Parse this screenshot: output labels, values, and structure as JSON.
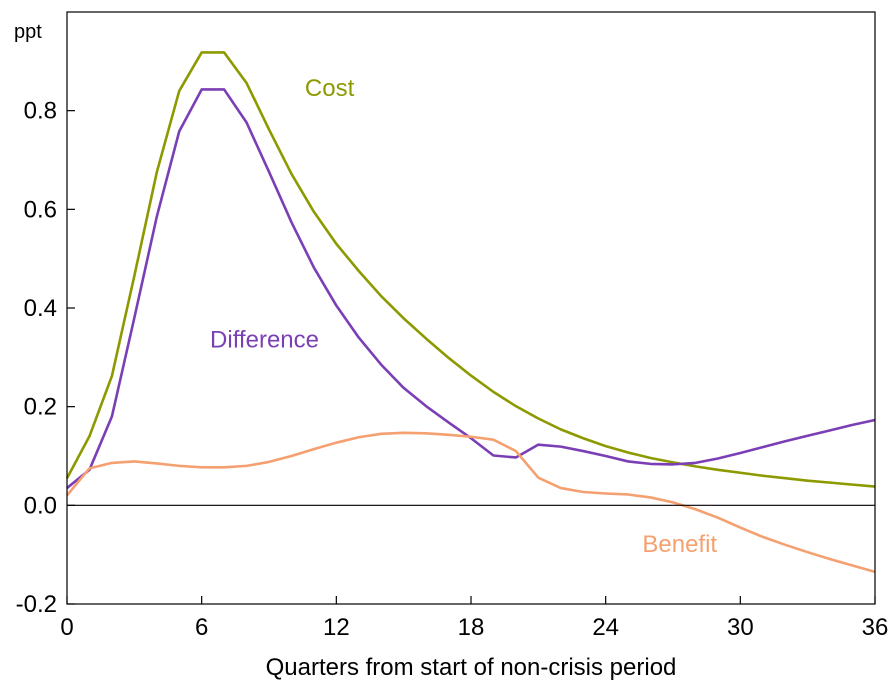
{
  "chart_data": {
    "type": "line",
    "title": "",
    "unit_label": "ppt",
    "xlabel": "Quarters from start of non-crisis period",
    "ylabel": "",
    "xlim": [
      0,
      36
    ],
    "ylim": [
      -0.2,
      1.0
    ],
    "x_ticks": [
      0,
      6,
      12,
      18,
      24,
      30,
      36
    ],
    "x_tick_labels": [
      "0",
      "6",
      "12",
      "18",
      "24",
      "30",
      "36"
    ],
    "y_ticks": [
      -0.2,
      0.0,
      0.2,
      0.4,
      0.6,
      0.8
    ],
    "y_tick_labels": [
      "-0.2",
      "0.0",
      "0.2",
      "0.4",
      "0.6",
      "0.8"
    ],
    "zero_line": true,
    "grid": false,
    "series": [
      {
        "name": "Cost",
        "color": "#8c9a00",
        "label_anchor": {
          "x": 11.7,
          "y": 0.83
        },
        "points": [
          [
            0,
            0.055
          ],
          [
            1,
            0.14
          ],
          [
            2,
            0.262
          ],
          [
            3,
            0.465
          ],
          [
            4,
            0.675
          ],
          [
            5,
            0.84
          ],
          [
            6,
            0.918
          ],
          [
            7,
            0.918
          ],
          [
            8,
            0.856
          ],
          [
            9,
            0.762
          ],
          [
            10,
            0.672
          ],
          [
            11,
            0.595
          ],
          [
            12,
            0.53
          ],
          [
            13,
            0.475
          ],
          [
            14,
            0.424
          ],
          [
            15,
            0.379
          ],
          [
            16,
            0.338
          ],
          [
            17,
            0.299
          ],
          [
            18,
            0.263
          ],
          [
            19,
            0.23
          ],
          [
            20,
            0.201
          ],
          [
            21,
            0.176
          ],
          [
            22,
            0.154
          ],
          [
            23,
            0.136
          ],
          [
            24,
            0.12
          ],
          [
            25,
            0.107
          ],
          [
            26,
            0.096
          ],
          [
            27,
            0.087
          ],
          [
            28,
            0.079
          ],
          [
            29,
            0.072
          ],
          [
            30,
            0.066
          ],
          [
            31,
            0.06
          ],
          [
            32,
            0.055
          ],
          [
            33,
            0.05
          ],
          [
            34,
            0.046
          ],
          [
            35,
            0.042
          ],
          [
            36,
            0.038
          ]
        ]
      },
      {
        "name": "Difference",
        "color": "#7b3fb5",
        "label_anchor": {
          "x": 8.8,
          "y": 0.32
        },
        "points": [
          [
            0,
            0.035
          ],
          [
            1,
            0.072
          ],
          [
            2,
            0.18
          ],
          [
            3,
            0.38
          ],
          [
            4,
            0.585
          ],
          [
            5,
            0.758
          ],
          [
            6,
            0.843
          ],
          [
            7,
            0.843
          ],
          [
            8,
            0.776
          ],
          [
            9,
            0.676
          ],
          [
            10,
            0.574
          ],
          [
            11,
            0.482
          ],
          [
            12,
            0.405
          ],
          [
            13,
            0.34
          ],
          [
            14,
            0.285
          ],
          [
            15,
            0.238
          ],
          [
            16,
            0.201
          ],
          [
            17,
            0.168
          ],
          [
            18,
            0.136
          ],
          [
            19,
            0.101
          ],
          [
            20,
            0.097
          ],
          [
            21,
            0.123
          ],
          [
            22,
            0.119
          ],
          [
            23,
            0.11
          ],
          [
            24,
            0.1
          ],
          [
            25,
            0.089
          ],
          [
            26,
            0.084
          ],
          [
            27,
            0.083
          ],
          [
            28,
            0.086
          ],
          [
            29,
            0.095
          ],
          [
            30,
            0.106
          ],
          [
            31,
            0.118
          ],
          [
            32,
            0.13
          ],
          [
            33,
            0.141
          ],
          [
            34,
            0.152
          ],
          [
            35,
            0.163
          ],
          [
            36,
            0.173
          ]
        ]
      },
      {
        "name": "Benefit",
        "color": "#f5a070",
        "label_anchor": {
          "x": 27.3,
          "y": -0.095
        },
        "points": [
          [
            0,
            0.02
          ],
          [
            1,
            0.075
          ],
          [
            2,
            0.086
          ],
          [
            3,
            0.089
          ],
          [
            4,
            0.085
          ],
          [
            5,
            0.08
          ],
          [
            6,
            0.077
          ],
          [
            7,
            0.077
          ],
          [
            8,
            0.08
          ],
          [
            9,
            0.088
          ],
          [
            10,
            0.1
          ],
          [
            11,
            0.114
          ],
          [
            12,
            0.127
          ],
          [
            13,
            0.138
          ],
          [
            14,
            0.145
          ],
          [
            15,
            0.147
          ],
          [
            16,
            0.146
          ],
          [
            17,
            0.143
          ],
          [
            18,
            0.139
          ],
          [
            19,
            0.133
          ],
          [
            20,
            0.11
          ],
          [
            21,
            0.056
          ],
          [
            22,
            0.035
          ],
          [
            23,
            0.027
          ],
          [
            24,
            0.024
          ],
          [
            25,
            0.022
          ],
          [
            26,
            0.016
          ],
          [
            27,
            0.006
          ],
          [
            28,
            -0.008
          ],
          [
            29,
            -0.025
          ],
          [
            30,
            -0.045
          ],
          [
            31,
            -0.064
          ],
          [
            32,
            -0.08
          ],
          [
            33,
            -0.095
          ],
          [
            34,
            -0.109
          ],
          [
            35,
            -0.122
          ],
          [
            36,
            -0.135
          ]
        ]
      }
    ]
  }
}
